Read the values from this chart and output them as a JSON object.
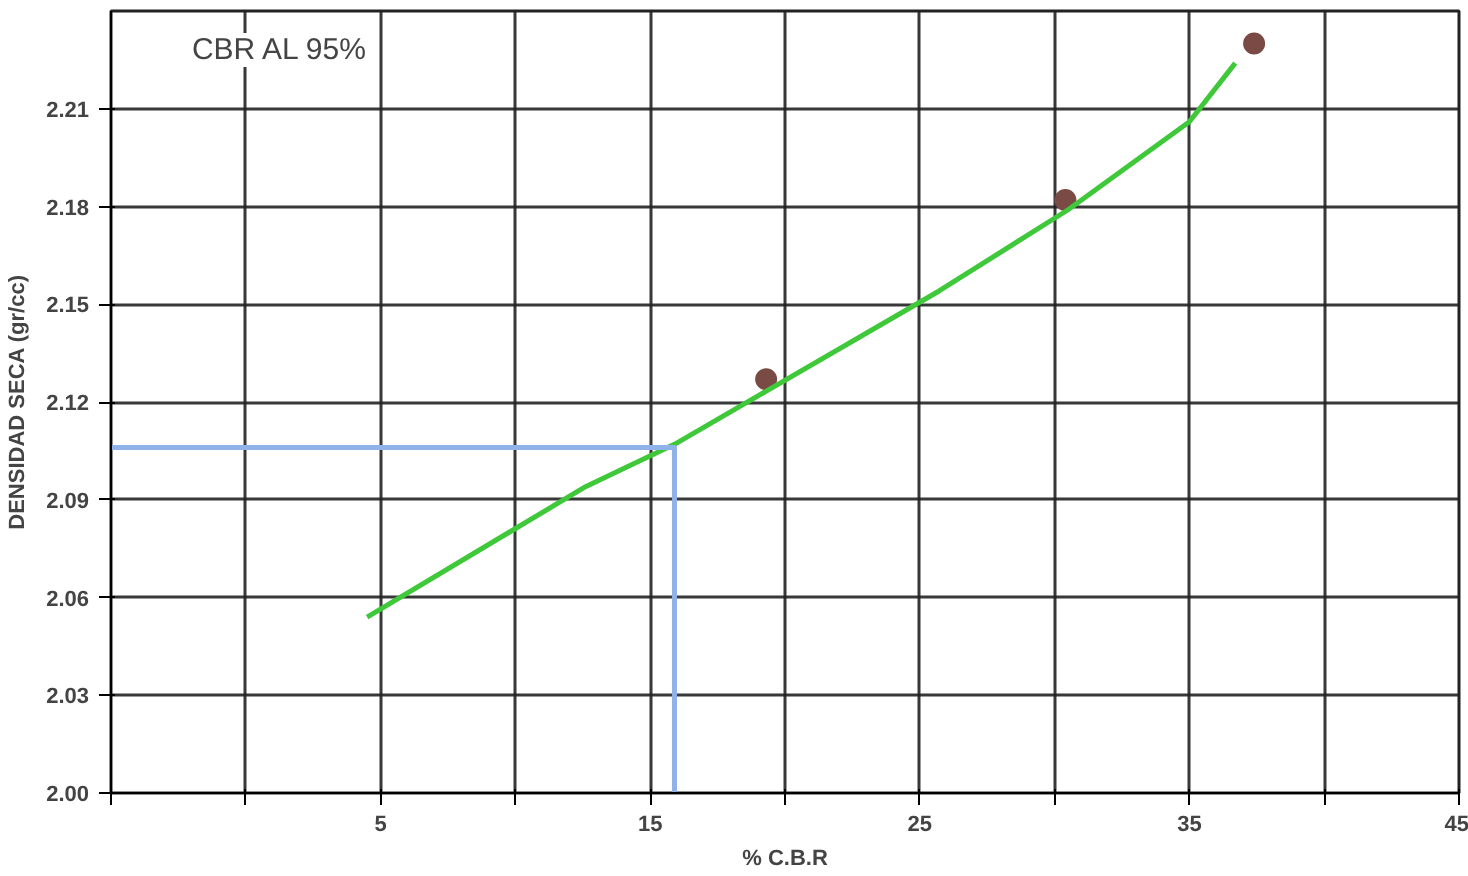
{
  "chart_data": {
    "type": "scatter",
    "xlabel": "% C.B.R",
    "ylabel": "DENSIDAD SECA (gr/cc)",
    "annotations": [
      "CBR AL 95%"
    ],
    "xlim": [
      -5,
      45
    ],
    "ylim": [
      2.0,
      2.24
    ],
    "xticks": [
      {
        "value": -5,
        "label": null
      },
      {
        "value": 0,
        "label": null
      },
      5,
      {
        "value": 10,
        "label": null
      },
      15,
      {
        "value": 20,
        "label": null
      },
      25,
      {
        "value": 30,
        "label": null
      },
      35,
      {
        "value": 40,
        "label": null
      },
      45
    ],
    "yticks": [
      {
        "value": 2.0,
        "label": "2.00"
      },
      2.03,
      2.06,
      2.09,
      2.12,
      2.15,
      2.18,
      2.21
    ],
    "grid": true,
    "series": [
      {
        "color": "#7a4a44",
        "marker": "circle",
        "x": [
          19.3,
          30.4,
          37.4
        ],
        "values": [
          2.127,
          2.182,
          2.23
        ]
      },
      {
        "type": "line",
        "color": "#3fc83a",
        "line_style": "solid",
        "x": [
          4.5,
          12.6,
          15.9,
          25.7,
          30.5,
          35,
          36.7
        ],
        "values": [
          2.054,
          2.094,
          2.107,
          2.154,
          2.179,
          2.206,
          2.224
        ]
      },
      {
        "type": "line",
        "color": "#8fb2e8",
        "line_style": "solid",
        "x": [
          -5,
          15.9,
          15.9
        ],
        "values": [
          2.106,
          2.106,
          2.0
        ]
      }
    ]
  }
}
